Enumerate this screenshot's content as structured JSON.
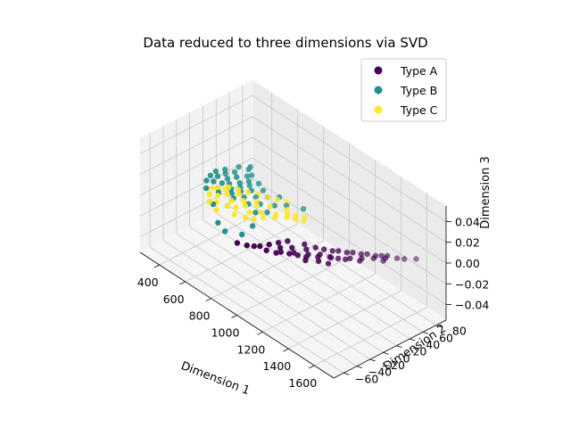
{
  "chart_data": {
    "type": "scatter",
    "projection": "3d",
    "title": "Data reduced to three dimensions via SVD",
    "xlabel": "Dimension 1",
    "ylabel": "Dimension 2",
    "zlabel": "Dimension 3",
    "xlim": [
      250,
      1750
    ],
    "ylim": [
      -75,
      95
    ],
    "zlim": [
      -0.055,
      0.055
    ],
    "xticks": [
      "400",
      "600",
      "800",
      "1000",
      "1200",
      "1400",
      "1600"
    ],
    "yticks": [
      "−60",
      "−40",
      "−20",
      "0",
      "20",
      "40",
      "60",
      "80"
    ],
    "zticks": [
      "−0.04",
      "−0.02",
      "0.00",
      "0.02",
      "0.04"
    ],
    "grid": true,
    "legend_position": "upper right",
    "colors": {
      "Type A": "#440154",
      "Type B": "#21918c",
      "Type C": "#fde725"
    },
    "series": [
      {
        "name": "Type A",
        "points": [
          [
            1000,
            -40,
            0
          ],
          [
            1020,
            -30,
            0
          ],
          [
            1040,
            -20,
            0
          ],
          [
            1060,
            -10,
            0
          ],
          [
            1080,
            -25,
            0
          ],
          [
            1100,
            -35,
            0
          ],
          [
            1120,
            -15,
            0
          ],
          [
            1140,
            0,
            0
          ],
          [
            1160,
            -20,
            0
          ],
          [
            1180,
            -5,
            0
          ],
          [
            1200,
            5,
            0
          ],
          [
            1220,
            -10,
            0
          ],
          [
            1240,
            10,
            0
          ],
          [
            1260,
            0,
            0
          ],
          [
            1280,
            15,
            0
          ],
          [
            1300,
            20,
            0
          ],
          [
            1320,
            5,
            0
          ],
          [
            1340,
            25,
            0
          ],
          [
            1360,
            30,
            0
          ],
          [
            1380,
            15,
            0
          ],
          [
            1400,
            35,
            0
          ],
          [
            1420,
            40,
            0
          ],
          [
            1440,
            25,
            0
          ],
          [
            1460,
            45,
            0
          ],
          [
            1480,
            50,
            0
          ],
          [
            1500,
            55,
            0
          ],
          [
            1520,
            45,
            0
          ],
          [
            1550,
            60,
            0
          ],
          [
            1580,
            65,
            0
          ],
          [
            1620,
            75,
            0
          ],
          [
            900,
            -55,
            0
          ],
          [
            950,
            -50,
            0
          ],
          [
            980,
            -45,
            0
          ],
          [
            1050,
            -40,
            0
          ],
          [
            1110,
            -30,
            0
          ],
          [
            1150,
            -25,
            0
          ],
          [
            1190,
            -20,
            0
          ],
          [
            1230,
            -15,
            0
          ],
          [
            1270,
            -5,
            0
          ],
          [
            1310,
            5,
            0
          ],
          [
            1350,
            10,
            0
          ],
          [
            1390,
            20,
            0
          ],
          [
            1430,
            30,
            0
          ],
          [
            1470,
            40,
            0
          ],
          [
            1510,
            50,
            0
          ],
          [
            1300,
            -10,
            0
          ],
          [
            1250,
            -20,
            0
          ],
          [
            1350,
            -5,
            0
          ]
        ]
      },
      {
        "name": "Type B",
        "points": [
          [
            350,
            20,
            0
          ],
          [
            360,
            10,
            0
          ],
          [
            370,
            30,
            0
          ],
          [
            380,
            0,
            0
          ],
          [
            390,
            15,
            0
          ],
          [
            400,
            25,
            0
          ],
          [
            410,
            5,
            0
          ],
          [
            420,
            35,
            0
          ],
          [
            430,
            -10,
            0
          ],
          [
            440,
            20,
            0
          ],
          [
            450,
            10,
            0
          ],
          [
            460,
            30,
            0
          ],
          [
            470,
            0,
            0
          ],
          [
            480,
            15,
            0
          ],
          [
            490,
            40,
            0
          ],
          [
            500,
            -5,
            0
          ],
          [
            510,
            25,
            0
          ],
          [
            520,
            10,
            0
          ],
          [
            530,
            35,
            0
          ],
          [
            540,
            20,
            0
          ],
          [
            550,
            5,
            0
          ],
          [
            560,
            30,
            0
          ],
          [
            570,
            15,
            0
          ],
          [
            580,
            40,
            0
          ],
          [
            590,
            0,
            0
          ],
          [
            600,
            25,
            0
          ],
          [
            620,
            10,
            0
          ],
          [
            640,
            35,
            0
          ],
          [
            660,
            20,
            0
          ],
          [
            680,
            5,
            0
          ],
          [
            700,
            30,
            0
          ],
          [
            720,
            15,
            0
          ],
          [
            740,
            40,
            0
          ],
          [
            760,
            0,
            0
          ],
          [
            780,
            25,
            0
          ],
          [
            800,
            10,
            0
          ],
          [
            820,
            35,
            0
          ],
          [
            840,
            -20,
            0
          ],
          [
            860,
            -40,
            0
          ],
          [
            700,
            -45,
            0
          ],
          [
            780,
            -50,
            0
          ],
          [
            900,
            45,
            0
          ],
          [
            500,
            45,
            0
          ],
          [
            450,
            50,
            0
          ],
          [
            620,
            -15,
            0
          ],
          [
            560,
            -25,
            0
          ],
          [
            400,
            45,
            0
          ],
          [
            440,
            55,
            0
          ]
        ]
      },
      {
        "name": "Type C",
        "points": [
          [
            450,
            -5,
            0
          ],
          [
            480,
            -15,
            0
          ],
          [
            500,
            5,
            0
          ],
          [
            520,
            -10,
            0
          ],
          [
            540,
            0,
            0
          ],
          [
            560,
            -20,
            0
          ],
          [
            580,
            10,
            0
          ],
          [
            600,
            -5,
            0
          ],
          [
            620,
            -15,
            0
          ],
          [
            640,
            5,
            0
          ],
          [
            660,
            -10,
            0
          ],
          [
            680,
            0,
            0
          ],
          [
            700,
            -20,
            0
          ],
          [
            720,
            10,
            0
          ],
          [
            740,
            -5,
            0
          ],
          [
            760,
            -15,
            0
          ],
          [
            780,
            5,
            0
          ],
          [
            800,
            -10,
            0
          ],
          [
            820,
            0,
            0
          ],
          [
            840,
            15,
            0
          ],
          [
            860,
            10,
            0
          ],
          [
            880,
            25,
            0
          ],
          [
            900,
            20,
            0
          ],
          [
            920,
            30,
            0
          ],
          [
            940,
            25,
            0
          ],
          [
            960,
            35,
            0
          ],
          [
            980,
            30,
            0
          ],
          [
            600,
            20,
            0
          ],
          [
            650,
            25,
            0
          ],
          [
            700,
            30,
            0
          ],
          [
            750,
            35,
            0
          ],
          [
            800,
            40,
            0
          ],
          [
            550,
            15,
            0
          ],
          [
            500,
            10,
            0
          ],
          [
            470,
            0,
            0
          ],
          [
            530,
            -25,
            0
          ],
          [
            610,
            -30,
            0
          ],
          [
            690,
            15,
            0
          ],
          [
            770,
            20,
            0
          ],
          [
            850,
            30,
            0
          ]
        ]
      }
    ]
  }
}
